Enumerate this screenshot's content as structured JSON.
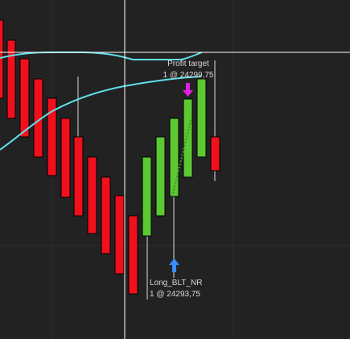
{
  "profit_target": {
    "label": "Profit target",
    "fill": "1 @ 24299,75"
  },
  "entry": {
    "label": "Long_BLT_NR",
    "fill": "1 @ 24293,75"
  }
}
